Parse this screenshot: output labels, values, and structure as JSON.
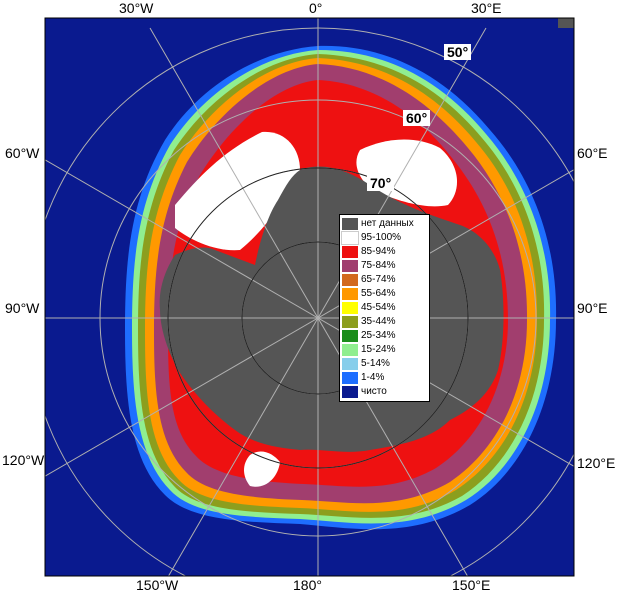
{
  "map": {
    "type": "south-polar-stereographic sea-ice concentration map",
    "colors": {
      "ocean": "#0a1a8f",
      "land": "#555555",
      "frame": "#000000",
      "grid": "#b0b0b0"
    },
    "longitude_labels": {
      "top": [
        "30°W",
        "0°",
        "30°E"
      ],
      "left": [
        "60°W",
        "90°W",
        "120°W"
      ],
      "right": [
        "60°E",
        "90°E",
        "120°E"
      ],
      "bottom": [
        "150°W",
        "180°",
        "150°E"
      ]
    },
    "latitude_labels": [
      "50°",
      "60°",
      "70°"
    ]
  },
  "legend": {
    "items": [
      {
        "label": "нет данных",
        "color": "#555555"
      },
      {
        "label": "95-100%",
        "color": "#ffffff"
      },
      {
        "label": "85-94%",
        "color": "#ee1111"
      },
      {
        "label": "75-84%",
        "color": "#a13e6e"
      },
      {
        "label": "65-74%",
        "color": "#d2691e"
      },
      {
        "label": "55-64%",
        "color": "#ff9900"
      },
      {
        "label": "45-54%",
        "color": "#ffff00"
      },
      {
        "label": "35-44%",
        "color": "#8c9e1e"
      },
      {
        "label": "25-34%",
        "color": "#1a8c1a"
      },
      {
        "label": "15-24%",
        "color": "#90ee90"
      },
      {
        "label": "5-14%",
        "color": "#87ceeb"
      },
      {
        "label": "1-4%",
        "color": "#1e6eff"
      },
      {
        "label": "чисто",
        "color": "#0a1a8f"
      }
    ]
  }
}
